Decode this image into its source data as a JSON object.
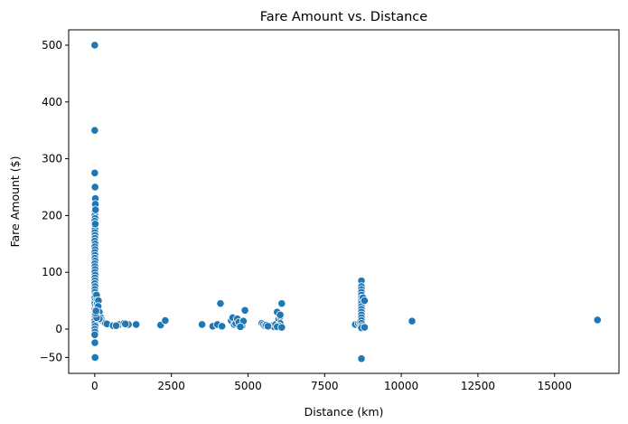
{
  "chart_data": {
    "type": "scatter",
    "title": "Fare Amount vs. Distance",
    "xlabel": "Distance (km)",
    "ylabel": "Fare Amount ($)",
    "xlim": [
      -850,
      17100
    ],
    "ylim": [
      -78,
      527
    ],
    "xticks": [
      0,
      2500,
      5000,
      7500,
      10000,
      12500,
      15000
    ],
    "yticks": [
      -50,
      0,
      100,
      200,
      300,
      400,
      500
    ],
    "grid": false,
    "legend": "none",
    "marker_color": "#1f77b4",
    "marker_edge": "#ffffff",
    "points": [
      [
        0,
        500
      ],
      [
        0,
        350
      ],
      [
        0,
        275
      ],
      [
        10,
        250
      ],
      [
        20,
        230
      ],
      [
        15,
        205
      ],
      [
        5,
        200
      ],
      [
        10,
        195
      ],
      [
        0,
        190
      ],
      [
        5,
        185
      ],
      [
        12,
        180
      ],
      [
        8,
        175
      ],
      [
        3,
        170
      ],
      [
        10,
        165
      ],
      [
        6,
        160
      ],
      [
        0,
        155
      ],
      [
        15,
        150
      ],
      [
        5,
        145
      ],
      [
        10,
        140
      ],
      [
        0,
        135
      ],
      [
        8,
        130
      ],
      [
        4,
        125
      ],
      [
        12,
        120
      ],
      [
        0,
        115
      ],
      [
        6,
        110
      ],
      [
        10,
        105
      ],
      [
        2,
        100
      ],
      [
        14,
        95
      ],
      [
        5,
        90
      ],
      [
        9,
        85
      ],
      [
        0,
        80
      ],
      [
        11,
        75
      ],
      [
        4,
        70
      ],
      [
        7,
        65
      ],
      [
        15,
        60
      ],
      [
        2,
        55
      ],
      [
        9,
        50
      ],
      [
        0,
        45
      ],
      [
        13,
        40
      ],
      [
        5,
        35
      ],
      [
        8,
        30
      ],
      [
        3,
        25
      ],
      [
        11,
        20
      ],
      [
        0,
        15
      ],
      [
        6,
        10
      ],
      [
        10,
        5
      ],
      [
        2,
        0
      ],
      [
        8,
        -5
      ],
      [
        0,
        -10
      ],
      [
        5,
        -24
      ],
      [
        0,
        -50
      ],
      [
        10,
        -50
      ],
      [
        20,
        220
      ],
      [
        25,
        210
      ],
      [
        18,
        185
      ],
      [
        60,
        60
      ],
      [
        70,
        50
      ],
      [
        80,
        45
      ],
      [
        50,
        35
      ],
      [
        90,
        25
      ],
      [
        120,
        50
      ],
      [
        110,
        40
      ],
      [
        150,
        30
      ],
      [
        200,
        20
      ],
      [
        250,
        15
      ],
      [
        300,
        12
      ],
      [
        350,
        10
      ],
      [
        400,
        9
      ],
      [
        150,
        18
      ],
      [
        60,
        20
      ],
      [
        30,
        28
      ],
      [
        40,
        32
      ],
      [
        600,
        6
      ],
      [
        800,
        8
      ],
      [
        950,
        10
      ],
      [
        1100,
        8
      ],
      [
        1350,
        8
      ],
      [
        700,
        6
      ],
      [
        1000,
        9
      ],
      [
        2150,
        7
      ],
      [
        2300,
        15
      ],
      [
        3500,
        8
      ],
      [
        3850,
        5
      ],
      [
        4000,
        8
      ],
      [
        4100,
        45
      ],
      [
        4150,
        5
      ],
      [
        4450,
        15
      ],
      [
        4500,
        20
      ],
      [
        4550,
        8
      ],
      [
        4600,
        10
      ],
      [
        4650,
        18
      ],
      [
        4700,
        12
      ],
      [
        4800,
        5
      ],
      [
        4850,
        14
      ],
      [
        4900,
        33
      ],
      [
        4750,
        4
      ],
      [
        5450,
        10
      ],
      [
        5500,
        8
      ],
      [
        5550,
        6
      ],
      [
        5600,
        7
      ],
      [
        5700,
        5
      ],
      [
        5800,
        6
      ],
      [
        5850,
        4
      ],
      [
        5900,
        8
      ],
      [
        5950,
        30
      ],
      [
        6000,
        18
      ],
      [
        6050,
        22
      ],
      [
        6100,
        45
      ],
      [
        6050,
        10
      ],
      [
        6000,
        6
      ],
      [
        5950,
        4
      ],
      [
        6100,
        3
      ],
      [
        6050,
        25
      ],
      [
        5650,
        5
      ],
      [
        8500,
        8
      ],
      [
        8600,
        10
      ],
      [
        8650,
        12
      ],
      [
        8700,
        85
      ],
      [
        8700,
        75
      ],
      [
        8700,
        70
      ],
      [
        8700,
        65
      ],
      [
        8700,
        60
      ],
      [
        8700,
        55
      ],
      [
        8700,
        50
      ],
      [
        8700,
        45
      ],
      [
        8700,
        40
      ],
      [
        8700,
        35
      ],
      [
        8700,
        30
      ],
      [
        8700,
        25
      ],
      [
        8700,
        20
      ],
      [
        8700,
        15
      ],
      [
        8700,
        10
      ],
      [
        8700,
        5
      ],
      [
        8700,
        2
      ],
      [
        8700,
        -52
      ],
      [
        8750,
        55
      ],
      [
        8800,
        50
      ],
      [
        8800,
        3
      ],
      [
        10350,
        14
      ],
      [
        16400,
        16
      ]
    ]
  }
}
